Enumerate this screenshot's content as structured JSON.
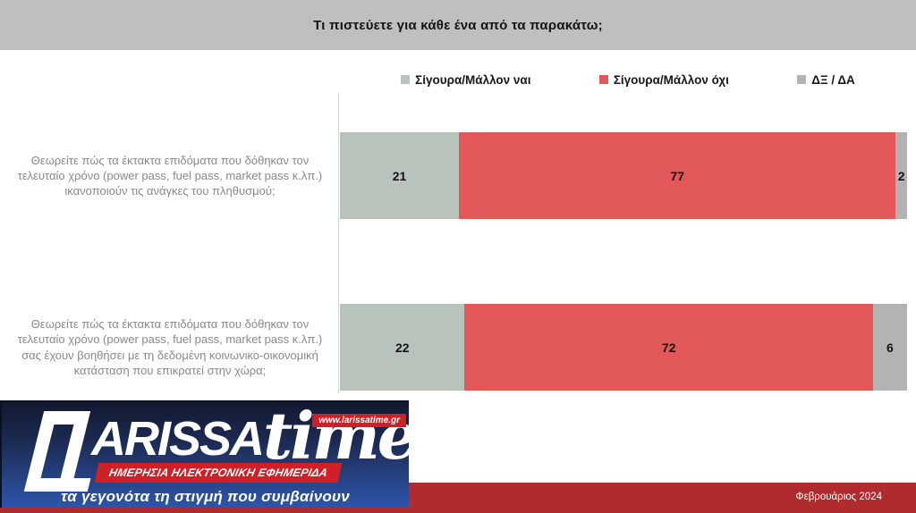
{
  "header": {
    "title": "Τι πιστεύετε για κάθε ένα από τα παρακάτω;"
  },
  "chart_data": {
    "type": "bar",
    "orientation": "horizontal",
    "stacked": true,
    "unit": "percent",
    "xlim": [
      0,
      100
    ],
    "legend_position": "top",
    "grid": false,
    "categories": [
      "Θεωρείτε πώς τα έκτακτα επιδόματα που δόθηκαν τον τελευταίο χρόνο (power pass, fuel pass, market pass κ.λπ.) ικανοποιούν τις ανάγκες του πληθυσμού;",
      "Θεωρείτε πώς τα έκτακτα επιδόματα που δόθηκαν τον τελευταίο χρόνο (power pass, fuel pass, market pass κ.λπ.) σας έχουν βοηθήσει με τη δεδομένη κοινωνικο-οικονομική κατάσταση που επικρατεί στην χώρα;"
    ],
    "series": [
      {
        "name": "Σίγουρα/Μάλλον ναι",
        "color": "#b8c3bb",
        "values": [
          21,
          22
        ]
      },
      {
        "name": "Σίγουρα/Μάλλον όχι",
        "color": "#e25859",
        "values": [
          77,
          72
        ]
      },
      {
        "name": "ΔΞ / ΔΑ",
        "color": "#b3b3b3",
        "values": [
          2,
          6
        ]
      }
    ]
  },
  "footer": {
    "logo": {
      "brand_l": "L",
      "brand_rest": "ARISSA",
      "brand_suffix": "time",
      "url_badge": "www.larissatime.gr",
      "ribbon": "ΗΜΕΡΗΣΙΑ ΗΛΕΚΤΡΟΝΙΚΗ ΕΦΗΜΕΡΙΔΑ",
      "tagline": "τα γεγονότα τη στιγμή που συμβαίνουν"
    },
    "date": "Φεβρουάριος 2024"
  },
  "colors": {
    "header_bg": "#bfbfbf",
    "series_yes": "#b8c3bb",
    "series_no": "#e25859",
    "series_dk": "#b3b3b3",
    "footer_red": "#b02b2e",
    "logo_red": "#cf2027",
    "logo_blue_top": "#121930",
    "logo_blue_bottom": "#2e55ab",
    "label_gray": "#898989"
  }
}
